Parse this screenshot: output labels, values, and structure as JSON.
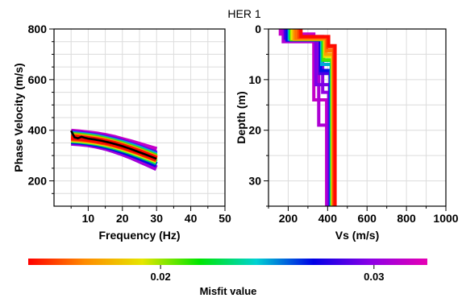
{
  "figure_title": "HER 1",
  "chart_data": [
    {
      "id": "dispersion",
      "type": "line",
      "xlabel": "Frequency (Hz)",
      "ylabel": "Phase Velocity (m/s)",
      "xlim": [
        0,
        50
      ],
      "ylim": [
        100,
        800
      ],
      "xticks": [
        10,
        20,
        30,
        40,
        50
      ],
      "yticks": [
        200,
        400,
        600,
        800
      ],
      "grid": true,
      "frequencies": [
        5,
        7.5,
        10,
        12.5,
        15,
        17.5,
        20,
        22.5,
        25,
        27.5,
        30
      ],
      "curves": [
        {
          "misfit": 0.0315,
          "values": [
            395,
            392,
            388,
            384,
            378,
            371,
            362,
            353,
            343,
            333,
            323
          ]
        },
        {
          "misfit": 0.0305,
          "values": [
            350,
            348,
            344,
            338,
            330,
            320,
            308,
            295,
            280,
            265,
            250
          ]
        },
        {
          "misfit": 0.029,
          "values": [
            390,
            387,
            383,
            378,
            372,
            364,
            355,
            344,
            333,
            320,
            308
          ]
        },
        {
          "misfit": 0.027,
          "values": [
            356,
            354,
            350,
            344,
            337,
            328,
            317,
            305,
            292,
            278,
            264
          ]
        },
        {
          "misfit": 0.025,
          "values": [
            386,
            383,
            379,
            374,
            367,
            359,
            350,
            340,
            328,
            315,
            302
          ]
        },
        {
          "misfit": 0.023,
          "values": [
            360,
            358,
            354,
            349,
            342,
            334,
            324,
            313,
            300,
            287,
            273
          ]
        },
        {
          "misfit": 0.021,
          "values": [
            382,
            379,
            375,
            370,
            363,
            355,
            345,
            334,
            322,
            309,
            296
          ]
        },
        {
          "misfit": 0.019,
          "values": [
            364,
            362,
            358,
            353,
            347,
            339,
            329,
            318,
            306,
            293,
            280
          ]
        },
        {
          "misfit": 0.017,
          "values": [
            378,
            375,
            371,
            366,
            359,
            351,
            341,
            330,
            318,
            305,
            291
          ]
        },
        {
          "misfit": 0.015,
          "values": [
            368,
            366,
            362,
            357,
            351,
            343,
            334,
            323,
            311,
            298,
            285
          ]
        },
        {
          "misfit": 0.014,
          "values": [
            373,
            370,
            366,
            361,
            355,
            347,
            337,
            326,
            314,
            301,
            288
          ]
        }
      ],
      "observed_frequencies": [
        5,
        6,
        7,
        8,
        9,
        10,
        12,
        14,
        16,
        18,
        20,
        22,
        24,
        26,
        28,
        30
      ],
      "observed_values": [
        398,
        372,
        368,
        374,
        370,
        367,
        363,
        358,
        352,
        345,
        337,
        328,
        318,
        308,
        298,
        287
      ]
    },
    {
      "id": "vs_profile",
      "type": "line",
      "xlabel": "Vs (m/s)",
      "ylabel": "Depth (m)",
      "xlim": [
        100,
        1000
      ],
      "ylim": [
        0,
        35
      ],
      "xticks": [
        200,
        400,
        600,
        800,
        1000
      ],
      "yticks": [
        0,
        10,
        20,
        30
      ],
      "y_inverted": true,
      "grid": true,
      "profiles": [
        {
          "misfit": 0.0315,
          "vs1": 160,
          "h1": 1.0,
          "vs2": 330,
          "h2": 13.0,
          "vs3": 395
        },
        {
          "misfit": 0.0308,
          "vs1": 175,
          "h1": 2.5,
          "vs2": 355,
          "h2": 16.5,
          "vs3": 400
        },
        {
          "misfit": 0.03,
          "vs1": 200,
          "h1": 1.5,
          "vs2": 375,
          "h2": 11.0,
          "vs3": 405
        },
        {
          "misfit": 0.0295,
          "vs1": 190,
          "h1": 2.0,
          "vs2": 340,
          "h2": 9.0,
          "vs3": 410
        },
        {
          "misfit": 0.0285,
          "vs1": 185,
          "h1": 1.8,
          "vs2": 360,
          "h2": 7.0,
          "vs3": 412
        },
        {
          "misfit": 0.027,
          "vs1": 195,
          "h1": 2.2,
          "vs2": 365,
          "h2": 6.0,
          "vs3": 415
        },
        {
          "misfit": 0.025,
          "vs1": 205,
          "h1": 2.0,
          "vs2": 370,
          "h2": 5.0,
          "vs3": 418
        },
        {
          "misfit": 0.023,
          "vs1": 210,
          "h1": 1.7,
          "vs2": 375,
          "h2": 4.5,
          "vs3": 420
        },
        {
          "misfit": 0.021,
          "vs1": 215,
          "h1": 2.1,
          "vs2": 380,
          "h2": 4.0,
          "vs3": 423
        },
        {
          "misfit": 0.019,
          "vs1": 220,
          "h1": 1.9,
          "vs2": 385,
          "h2": 3.5,
          "vs3": 425
        },
        {
          "misfit": 0.017,
          "vs1": 230,
          "h1": 2.0,
          "vs2": 390,
          "h2": 3.0,
          "vs3": 428
        },
        {
          "misfit": 0.016,
          "vs1": 240,
          "h1": 1.8,
          "vs2": 395,
          "h2": 2.5,
          "vs3": 430
        },
        {
          "misfit": 0.015,
          "vs1": 255,
          "h1": 1.6,
          "vs2": 400,
          "h2": 2.0,
          "vs3": 433
        },
        {
          "misfit": 0.014,
          "vs1": 265,
          "h1": 1.5,
          "vs2": 405,
          "h2": 1.8,
          "vs3": 438
        }
      ]
    }
  ],
  "colorbar": {
    "label": "Misfit value",
    "min": 0.0138,
    "max": 0.0325,
    "ticks": [
      0.02,
      0.03
    ],
    "tick_labels": [
      "0.02",
      "0.03"
    ],
    "colors": [
      "#ff0000",
      "#ff8c00",
      "#e6e600",
      "#00e600",
      "#00d2d2",
      "#0000e6",
      "#8c00e6",
      "#e600b4"
    ]
  }
}
